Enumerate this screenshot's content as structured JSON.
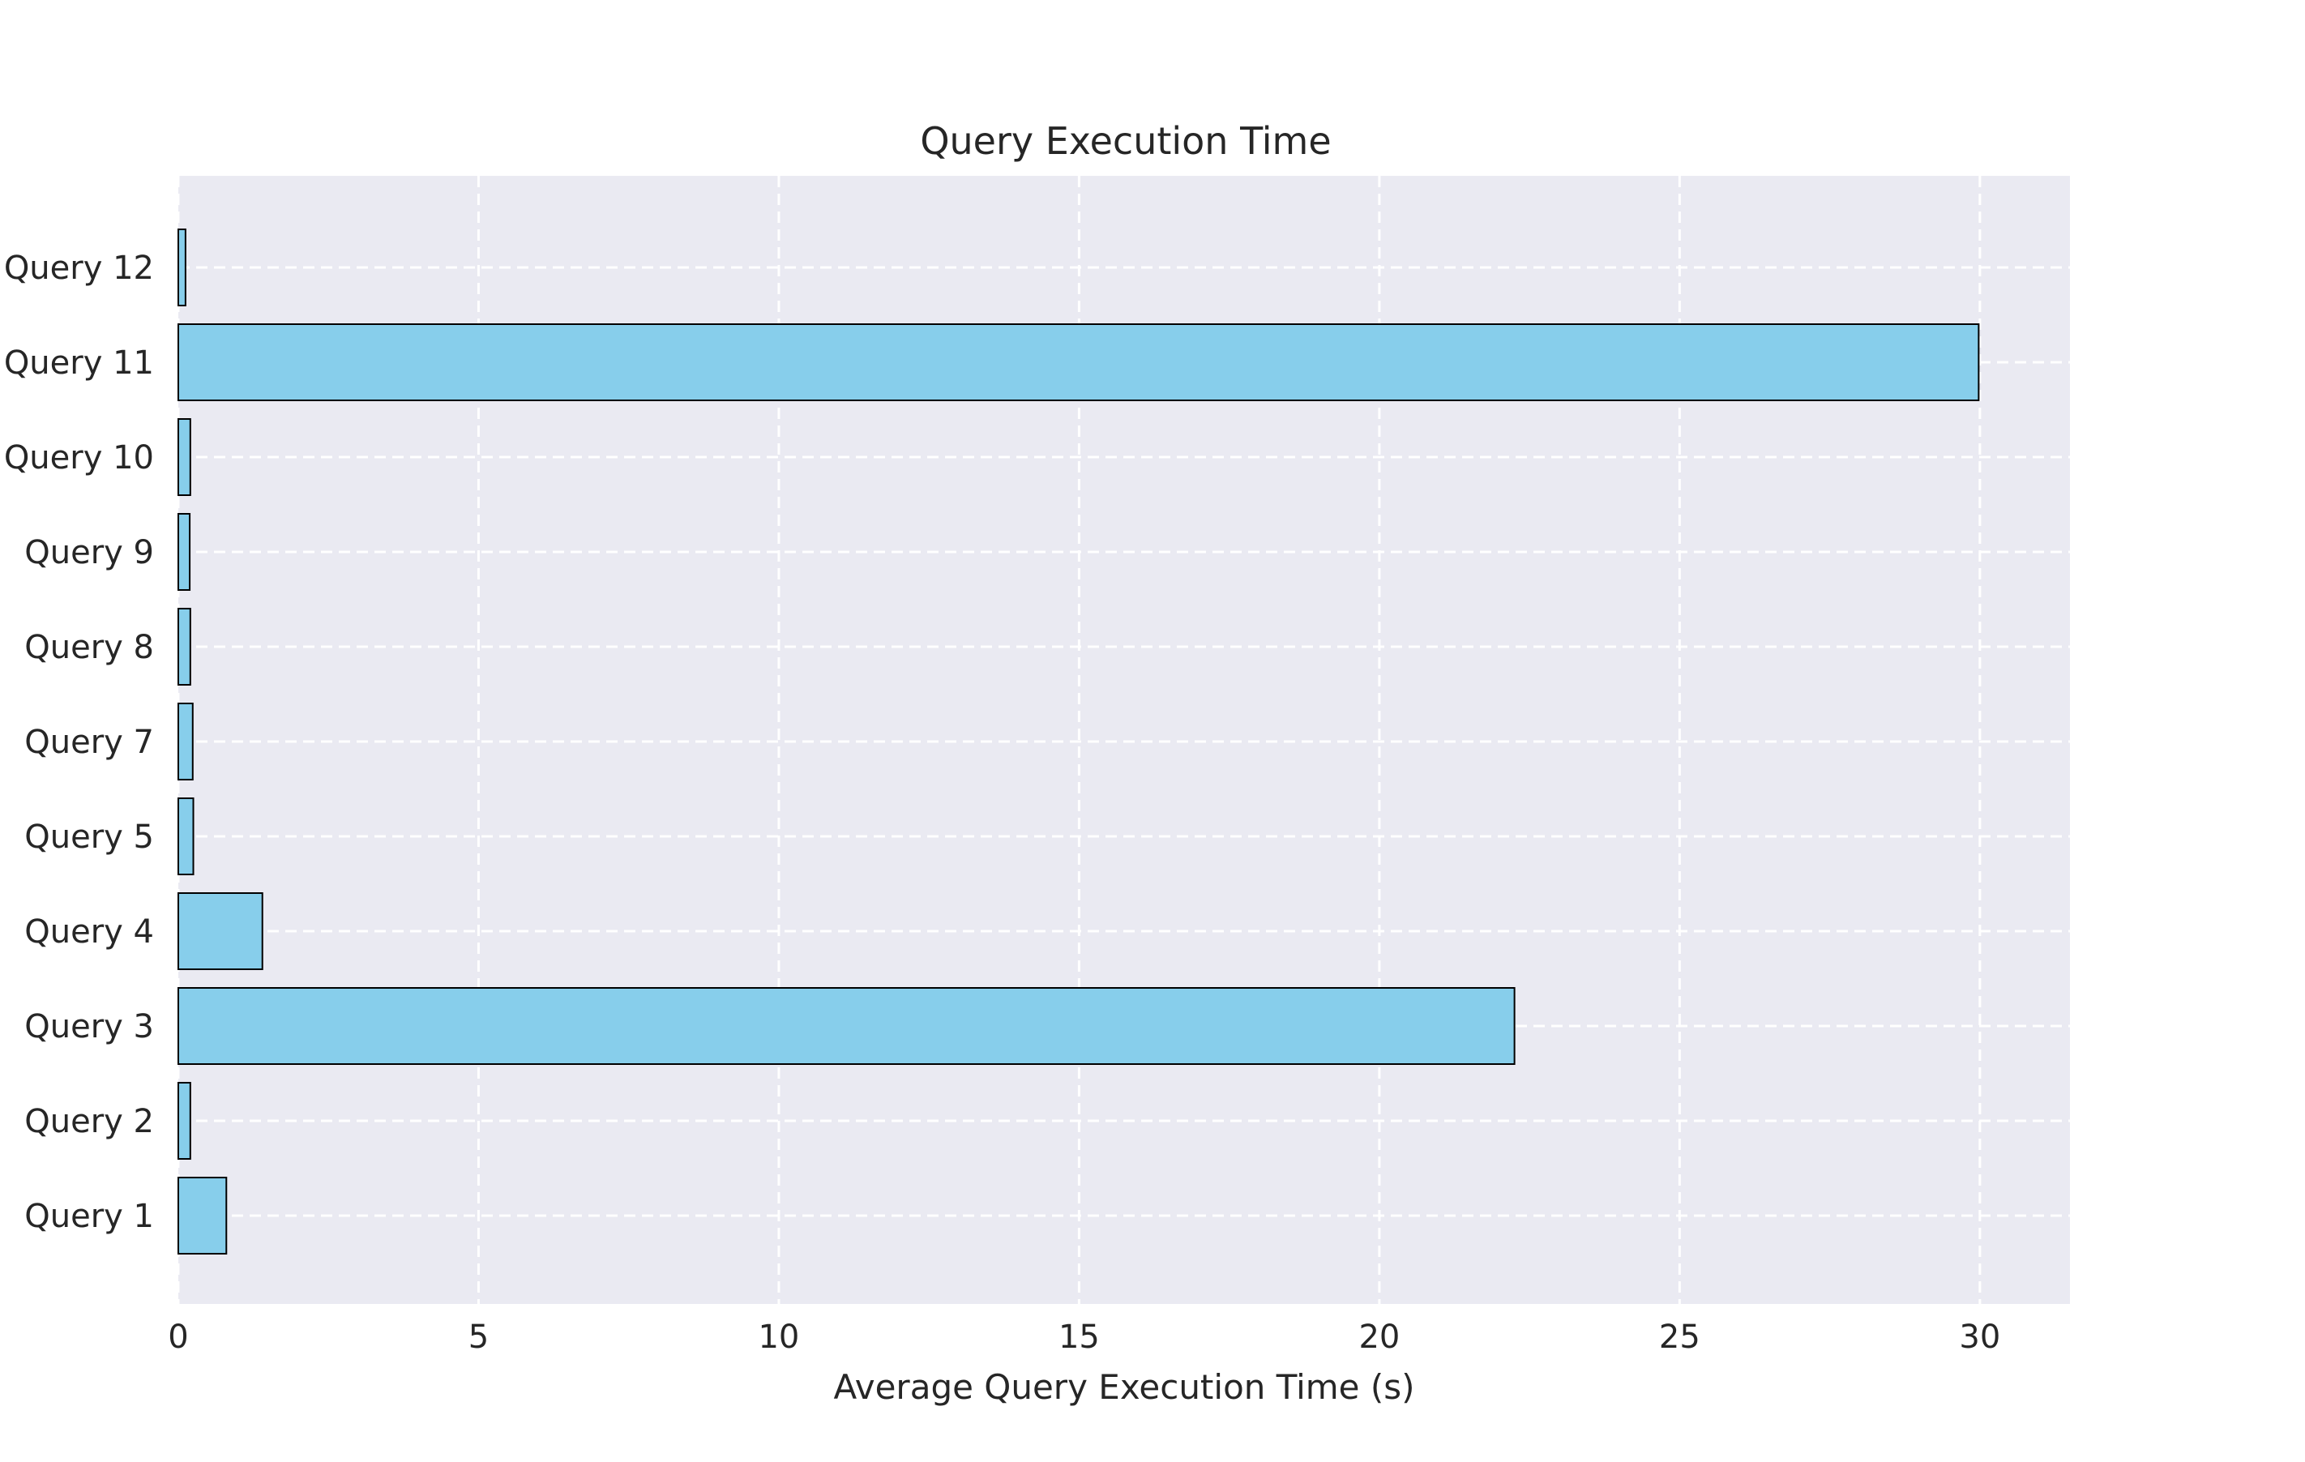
{
  "chart_data": {
    "type": "bar",
    "orientation": "horizontal",
    "title": "Query Execution Time",
    "xlabel": "Average Query Execution Time (s)",
    "ylabel": "",
    "categories": [
      "Query 1",
      "Query 2",
      "Query 3",
      "Query 4",
      "Query 5",
      "Query 7",
      "Query 8",
      "Query 9",
      "Query 10",
      "Query 11",
      "Query 12"
    ],
    "values": [
      0.8,
      0.2,
      22.25,
      1.4,
      0.25,
      0.24,
      0.2,
      0.19,
      0.2,
      29.98,
      0.12
    ],
    "xlim": [
      0,
      31.5
    ],
    "xticks": [
      0,
      5,
      10,
      15,
      20,
      25,
      30
    ],
    "grid": true,
    "colors": {
      "bar_fill": "#87ceeb",
      "bar_edge": "#000000",
      "plot_background": "#eaeaf2",
      "grid": "#ffffff",
      "text": "#262626"
    }
  }
}
